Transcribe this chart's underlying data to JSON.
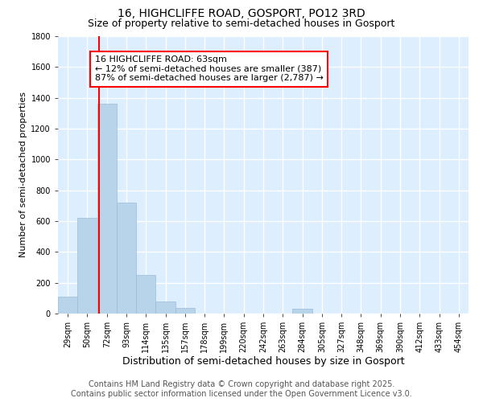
{
  "title1": "16, HIGHCLIFFE ROAD, GOSPORT, PO12 3RD",
  "title2": "Size of property relative to semi-detached houses in Gosport",
  "xlabel": "Distribution of semi-detached houses by size in Gosport",
  "ylabel": "Number of semi-detached properties",
  "categories": [
    "29sqm",
    "50sqm",
    "72sqm",
    "93sqm",
    "114sqm",
    "135sqm",
    "157sqm",
    "178sqm",
    "199sqm",
    "220sqm",
    "242sqm",
    "263sqm",
    "284sqm",
    "305sqm",
    "327sqm",
    "348sqm",
    "369sqm",
    "390sqm",
    "412sqm",
    "433sqm",
    "454sqm"
  ],
  "values": [
    110,
    620,
    1360,
    720,
    250,
    80,
    35,
    0,
    0,
    0,
    0,
    0,
    30,
    0,
    0,
    0,
    0,
    0,
    0,
    0,
    0
  ],
  "bar_color": "#b8d4ea",
  "bar_edge_color": "#9bbdd8",
  "vline_color": "red",
  "vline_pos": 1.58,
  "annotation_title": "16 HIGHCLIFFE ROAD: 63sqm",
  "annotation_line1": "← 12% of semi-detached houses are smaller (387)",
  "annotation_line2": "87% of semi-detached houses are larger (2,787) →",
  "annotation_box_color": "white",
  "annotation_box_edgecolor": "red",
  "ylim": [
    0,
    1800
  ],
  "yticks": [
    0,
    200,
    400,
    600,
    800,
    1000,
    1200,
    1400,
    1600,
    1800
  ],
  "bg_color": "#ddeeff",
  "grid_color": "white",
  "footer1": "Contains HM Land Registry data © Crown copyright and database right 2025.",
  "footer2": "Contains public sector information licensed under the Open Government Licence v3.0.",
  "title1_fontsize": 10,
  "title2_fontsize": 9,
  "xlabel_fontsize": 9,
  "ylabel_fontsize": 8,
  "tick_fontsize": 7,
  "annotation_fontsize": 8,
  "footer_fontsize": 7
}
